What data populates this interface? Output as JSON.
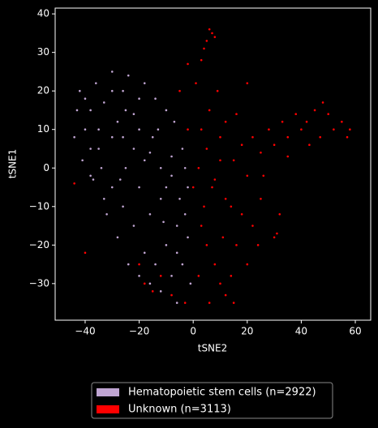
{
  "chart_data": {
    "type": "scatter",
    "xlabel": "tSNE2",
    "ylabel": "tSNE1",
    "xlim": [
      -51.1,
      65.7
    ],
    "ylim": [
      -39.5,
      41.5
    ],
    "xticks": [
      {
        "value": -40,
        "label": "−40"
      },
      {
        "value": -20,
        "label": "−20"
      },
      0,
      20,
      40,
      60
    ],
    "yticks": [
      {
        "value": -30,
        "label": "−30"
      },
      {
        "value": -20,
        "label": "−20"
      },
      {
        "value": -10,
        "label": "−10"
      },
      0,
      10,
      20,
      30,
      40
    ],
    "legend": "bottom",
    "series": [
      {
        "name": "Hematopoietic stem cells (n=2922)",
        "color": "#c0a5d2",
        "x": [
          -42,
          -40,
          -38,
          -36,
          -35,
          -33,
          -30,
          -28,
          -26,
          -25,
          -22,
          -20,
          -18,
          -15,
          -12,
          -10,
          -8,
          -5,
          -3,
          -2,
          -6,
          -10,
          -14,
          -18,
          -22,
          -26,
          -30,
          -34,
          -38,
          -40,
          -43,
          -37,
          -32,
          -28,
          -24,
          -20,
          -16,
          -12,
          -8,
          -4,
          -2,
          -4,
          -7,
          -10,
          -14,
          -18,
          -24,
          -30,
          -20,
          -16,
          -12,
          -8,
          -25,
          -30,
          -35,
          -27,
          -22,
          -16,
          -11,
          -6,
          -3,
          -1,
          -6,
          -20,
          -26,
          -33,
          -38,
          -41,
          -44,
          -13
        ],
        "values": [
          20,
          18,
          15,
          22,
          10,
          17,
          20,
          12,
          8,
          15,
          5,
          10,
          2,
          8,
          0,
          -5,
          3,
          -8,
          -12,
          -18,
          -15,
          -20,
          -25,
          -22,
          -15,
          -10,
          -5,
          0,
          5,
          10,
          15,
          -3,
          -12,
          -18,
          -25,
          -28,
          -30,
          -32,
          -28,
          -25,
          -5,
          5,
          12,
          15,
          18,
          22,
          24,
          25,
          -5,
          -12,
          -8,
          -2,
          0,
          8,
          5,
          -3,
          14,
          4,
          -14,
          -22,
          0,
          -30,
          -35,
          18,
          20,
          -8,
          -2,
          2,
          8,
          10
        ]
      },
      {
        "name": "Unknown (n=3113)",
        "color": "#ff0000",
        "x": [
          2,
          5,
          8,
          10,
          12,
          15,
          18,
          20,
          22,
          25,
          28,
          30,
          33,
          35,
          38,
          40,
          42,
          45,
          47,
          50,
          52,
          48,
          55,
          58,
          57,
          3,
          5,
          8,
          10,
          12,
          14,
          6,
          2,
          16,
          18,
          22,
          25,
          20,
          4,
          7,
          3,
          6,
          9,
          12,
          5,
          6,
          7,
          4,
          8,
          3,
          -2,
          1,
          -15,
          -18,
          -12,
          -20,
          -8,
          30,
          31,
          32,
          24,
          14,
          10,
          16,
          26,
          35,
          43,
          -44,
          -40,
          -2,
          -5,
          20,
          0,
          11,
          15,
          -3
        ],
        "values": [
          0,
          5,
          -3,
          8,
          -8,
          2,
          6,
          -2,
          8,
          4,
          10,
          6,
          12,
          8,
          14,
          10,
          12,
          15,
          8,
          14,
          10,
          17,
          12,
          10,
          8,
          -15,
          -20,
          -25,
          -30,
          -33,
          -28,
          -35,
          -28,
          -20,
          -12,
          -15,
          -8,
          -25,
          -10,
          -5,
          10,
          15,
          20,
          12,
          33,
          36,
          35,
          31,
          34,
          28,
          27,
          22,
          -32,
          -30,
          -28,
          -25,
          -33,
          -18,
          -17,
          -12,
          -20,
          -10,
          2,
          14,
          -2,
          3,
          6,
          -4,
          -22,
          10,
          20,
          22,
          -5,
          -18,
          -35,
          -35
        ]
      }
    ]
  }
}
